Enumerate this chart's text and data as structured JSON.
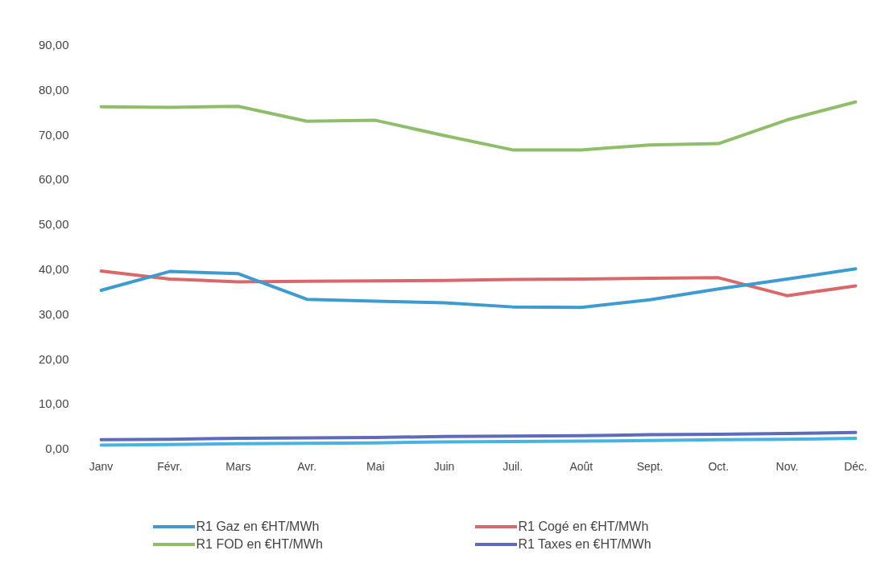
{
  "chart_data": {
    "type": "line",
    "categories": [
      "Janv",
      "Févr.",
      "Mars",
      "Avr.",
      "Mai",
      "Juin",
      "Juil.",
      "Août",
      "Sept.",
      "Oct.",
      "Nov.",
      "Déc."
    ],
    "series": [
      {
        "name": "R1 Gaz en €HT/MWh",
        "color": "#3d9bd0",
        "values": [
          35.5,
          39.7,
          39.2,
          33.5,
          33.1,
          32.7,
          31.8,
          31.7,
          33.4,
          35.8,
          38.0,
          40.3
        ]
      },
      {
        "name": "R1 Cogé en €HT/MWh",
        "color": "#d9686b",
        "values": [
          39.8,
          38.0,
          37.4,
          37.5,
          37.6,
          37.7,
          37.9,
          38.0,
          38.2,
          38.3,
          34.3,
          36.5
        ]
      },
      {
        "name": "R1 FOD en €HT/MWh",
        "color": "#8fbe6a",
        "values": [
          76.4,
          76.3,
          76.5,
          73.2,
          73.4,
          70.0,
          66.8,
          66.8,
          67.9,
          68.2,
          73.5,
          77.5
        ]
      },
      {
        "name": "R1 Taxes en €HT/MWh",
        "color": "#5d6bb8",
        "values": [
          2.2,
          2.3,
          2.5,
          2.6,
          2.7,
          2.9,
          3.0,
          3.1,
          3.3,
          3.4,
          3.6,
          3.8
        ]
      },
      {
        "color": "#48b3e0",
        "values": [
          1.0,
          1.1,
          1.3,
          1.4,
          1.5,
          1.7,
          1.8,
          1.9,
          2.0,
          2.2,
          2.3,
          2.5
        ]
      }
    ],
    "ylim": [
      0,
      90
    ],
    "yticks": [
      {
        "value": 0,
        "label": "0,00"
      },
      {
        "value": 10,
        "label": "10,00"
      },
      {
        "value": 20,
        "label": "20,00"
      },
      {
        "value": 30,
        "label": "30,00"
      },
      {
        "value": 40,
        "label": "40,00"
      },
      {
        "value": 50,
        "label": "50,00"
      },
      {
        "value": 60,
        "label": "60,00"
      },
      {
        "value": 70,
        "label": "70,00"
      },
      {
        "value": 80,
        "label": "80,00"
      },
      {
        "value": 90,
        "label": "90,00"
      }
    ],
    "grid": false,
    "legend": "bottom",
    "marker": "none",
    "line_style": "solid"
  }
}
